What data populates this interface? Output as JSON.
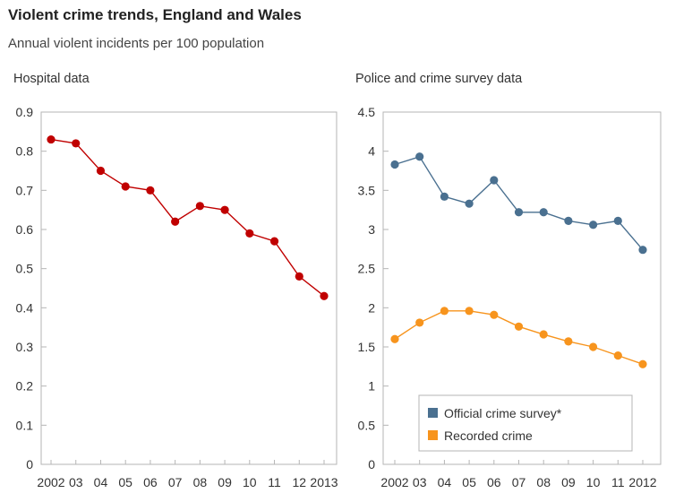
{
  "title": "Violent crime trends, England and Wales",
  "subtitle": "Annual violent incidents per 100 population",
  "chart_data": [
    {
      "type": "line",
      "title": "Hospital data",
      "x": [
        "2002",
        "03",
        "04",
        "05",
        "06",
        "07",
        "08",
        "09",
        "10",
        "11",
        "12",
        "2013"
      ],
      "ylim": [
        0,
        0.9
      ],
      "yticks": [
        "0",
        "0.1",
        "0.2",
        "0.3",
        "0.4",
        "0.5",
        "0.6",
        "0.7",
        "0.8",
        "0.9"
      ],
      "grid": false,
      "series": [
        {
          "color": "#c00000",
          "values": [
            0.83,
            0.82,
            0.75,
            0.71,
            0.7,
            0.62,
            0.66,
            0.65,
            0.59,
            0.57,
            0.48,
            0.43
          ]
        }
      ]
    },
    {
      "type": "line",
      "title": "Police and crime survey data",
      "x": [
        "2002",
        "03",
        "04",
        "05",
        "06",
        "07",
        "08",
        "09",
        "10",
        "11",
        "2012"
      ],
      "ylim": [
        0,
        4.5
      ],
      "yticks": [
        "0",
        "0.5",
        "1",
        "1.5",
        "2",
        "2.5",
        "3",
        "3.5",
        "4",
        "4.5"
      ],
      "grid": false,
      "legend_position": "bottom-center",
      "series": [
        {
          "name": "Official crime survey*",
          "color": "#4a7090",
          "values": [
            3.83,
            3.93,
            3.42,
            3.33,
            3.63,
            3.22,
            3.22,
            3.11,
            3.06,
            3.11,
            2.74
          ]
        },
        {
          "name": "Recorded crime",
          "color": "#f7941d",
          "values": [
            1.6,
            1.81,
            1.96,
            1.96,
            1.91,
            1.76,
            1.66,
            1.57,
            1.5,
            1.39,
            1.28
          ]
        }
      ]
    }
  ]
}
